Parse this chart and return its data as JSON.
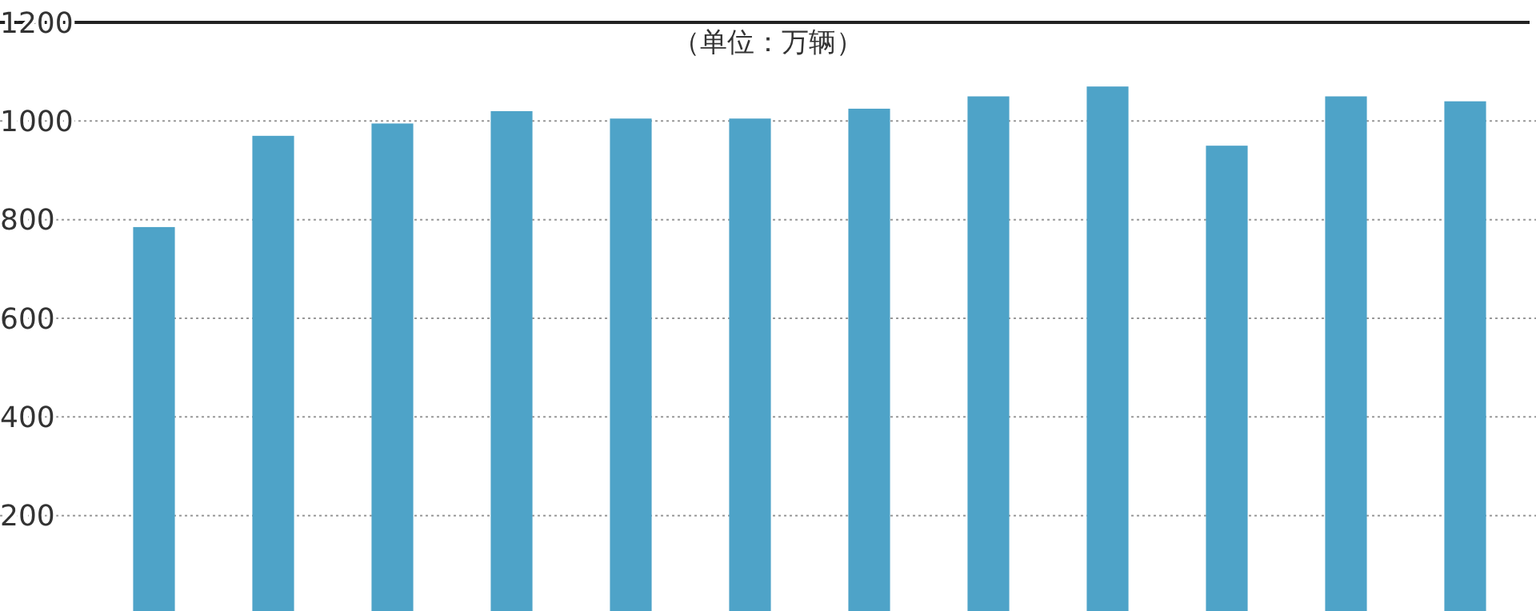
{
  "chart_data": {
    "type": "bar",
    "subtitle": "（单位：万辆）",
    "categories": [
      null,
      null,
      null,
      null,
      null,
      null,
      null,
      null,
      null,
      null,
      null,
      null
    ],
    "values": [
      785,
      970,
      995,
      1020,
      1005,
      1005,
      1025,
      1050,
      1070,
      950,
      1050,
      1040
    ],
    "color": "#4ea3c8",
    "ylim": [
      0,
      1200
    ],
    "yticks": [
      200,
      400,
      600,
      800,
      1000,
      1200
    ],
    "grid": "y"
  }
}
